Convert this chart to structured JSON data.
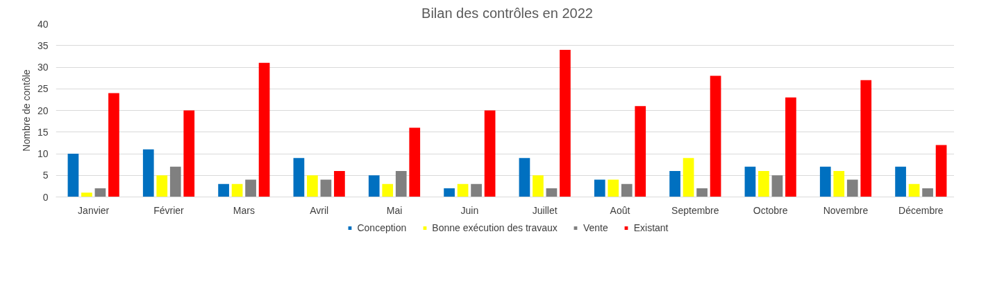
{
  "chart_data": {
    "type": "bar",
    "title": "Bilan des contrôles en 2022",
    "ylabel": "Nombre de contôle",
    "categories": [
      "Janvier",
      "Février",
      "Mars",
      "Avril",
      "Mai",
      "Juin",
      "Juillet",
      "Août",
      "Septembre",
      "Octobre",
      "Novembre",
      "Décembre"
    ],
    "series": [
      {
        "name": "Conception",
        "color": "#0070c0",
        "values": [
          10,
          11,
          3,
          9,
          5,
          2,
          9,
          4,
          6,
          7,
          7,
          7
        ]
      },
      {
        "name": "Bonne exécution des travaux",
        "color": "#ffff00",
        "values": [
          1,
          5,
          3,
          5,
          3,
          3,
          5,
          4,
          9,
          6,
          6,
          3
        ]
      },
      {
        "name": "Vente",
        "color": "#808080",
        "values": [
          2,
          7,
          4,
          4,
          6,
          3,
          2,
          3,
          2,
          5,
          4,
          2
        ]
      },
      {
        "name": "Existant",
        "color": "#ff0000",
        "values": [
          24,
          20,
          31,
          6,
          16,
          20,
          34,
          21,
          28,
          23,
          27,
          12
        ]
      }
    ],
    "ylim": [
      0,
      40
    ],
    "yticks": [
      0,
      5,
      10,
      15,
      20,
      25,
      30,
      35,
      40
    ],
    "grid": "y",
    "legend": "bottom"
  }
}
